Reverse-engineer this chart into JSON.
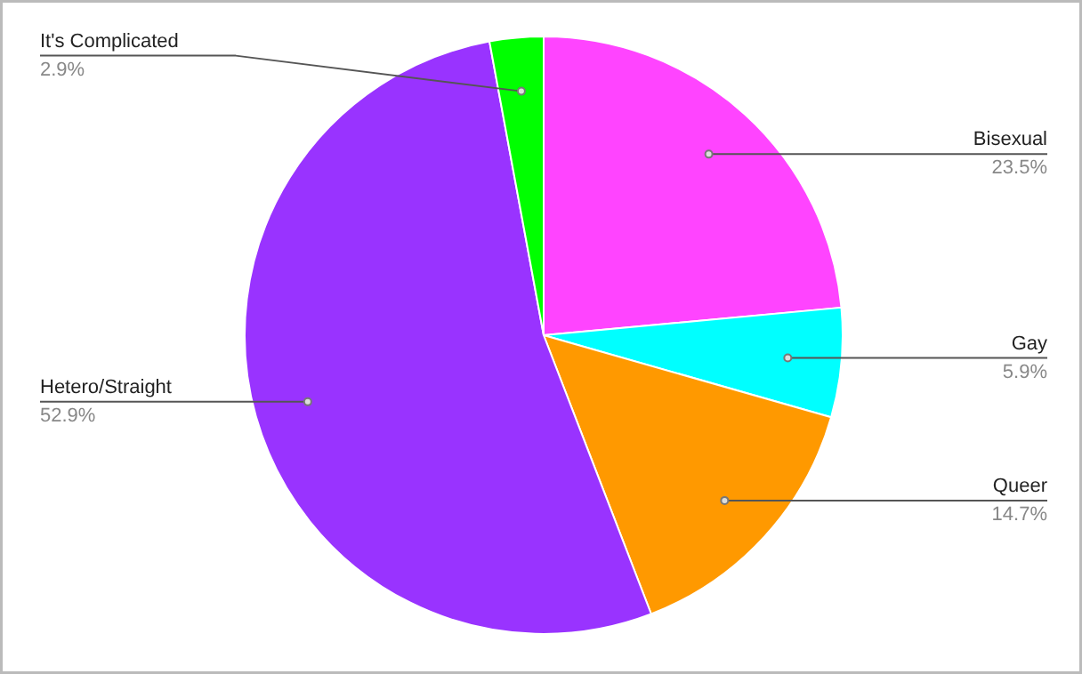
{
  "chart_data": {
    "type": "pie",
    "categories": [
      "Bisexual",
      "Gay",
      "Queer",
      "Hetero/Straight",
      "It's Complicated"
    ],
    "values": [
      23.5,
      5.9,
      14.7,
      52.9,
      2.9
    ],
    "colors": [
      "#ff44ff",
      "#00ffff",
      "#ff9900",
      "#9933ff",
      "#00ff00"
    ],
    "value_labels": [
      "23.5%",
      "5.9%",
      "14.7%",
      "52.9%",
      "2.9%"
    ]
  }
}
